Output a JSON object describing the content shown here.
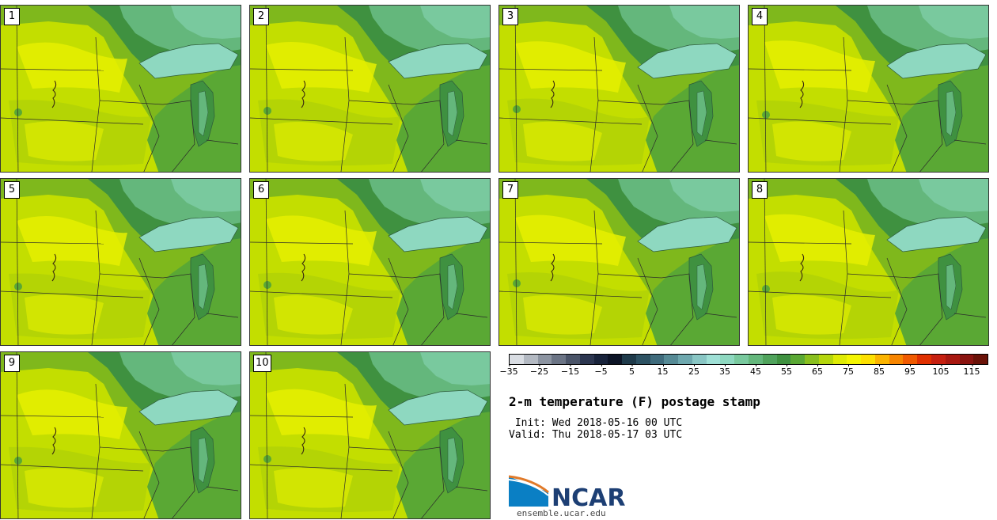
{
  "product": {
    "title": "2-m temperature (F) postage stamp",
    "init_label": " Init: Wed 2018-05-16 00 UTC",
    "valid_label": "Valid: Thu 2018-05-17 03 UTC"
  },
  "members": [
    "1",
    "2",
    "3",
    "4",
    "5",
    "6",
    "7",
    "8",
    "9",
    "10"
  ],
  "colorbar": {
    "tick_labels": [
      "−35",
      "−25",
      "−15",
      "−5",
      "5",
      "15",
      "25",
      "35",
      "45",
      "55",
      "65",
      "75",
      "85",
      "95",
      "105",
      "115"
    ],
    "colors": [
      "#d9dde3",
      "#b3b9c2",
      "#8c94a1",
      "#6b7485",
      "#4a5468",
      "#2c3650",
      "#18233b",
      "#0c1426",
      "#1e3a4a",
      "#2d5263",
      "#3f6b7c",
      "#568a95",
      "#6ea8ae",
      "#89c6c4",
      "#9fe0d6",
      "#8ed8c0",
      "#79c99e",
      "#64b77c",
      "#50a35c",
      "#3f9140",
      "#5aa834",
      "#89bf1e",
      "#b5d60d",
      "#dfeb05",
      "#f4f502",
      "#fde000",
      "#fbb400",
      "#f78500",
      "#f05a00",
      "#e03000",
      "#c62010",
      "#a81810",
      "#8a1410",
      "#6a1208"
    ]
  },
  "map_colors": {
    "yellow": "#e6f000",
    "yellow_green": "#c3de00",
    "light_green": "#a8cc0a",
    "mid_green": "#7fb81c",
    "green": "#5aa834",
    "dark_green": "#3f9140",
    "teal_green": "#64b77c",
    "teal": "#79c99e",
    "lake": "#8ed8c0"
  },
  "branding": {
    "logo_text": "NCAR",
    "website": "ensemble.ucar.edu"
  }
}
